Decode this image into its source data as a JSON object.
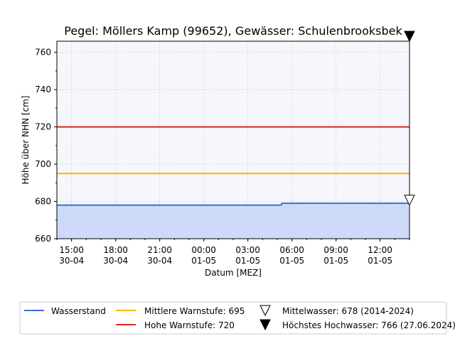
{
  "chart_data": {
    "type": "line",
    "title": "Pegel:  Möllers Kamp (99652), Gewässer:  Schulenbrooksbek",
    "xlabel": "Datum [MEZ]",
    "ylabel": "Höhe über NHN [cm]",
    "xlim": [
      "2024-04-30T14:00",
      "2024-05-01T14:00"
    ],
    "ylim": [
      660,
      766
    ],
    "yticks": [
      660,
      680,
      700,
      720,
      740,
      760
    ],
    "xticks": [
      {
        "t": "2024-04-30T15:00",
        "line1": "15:00",
        "line2": "30-04"
      },
      {
        "t": "2024-04-30T18:00",
        "line1": "18:00",
        "line2": "30-04"
      },
      {
        "t": "2024-04-30T21:00",
        "line1": "21:00",
        "line2": "30-04"
      },
      {
        "t": "2024-05-01T00:00",
        "line1": "00:00",
        "line2": "01-05"
      },
      {
        "t": "2024-05-01T03:00",
        "line1": "03:00",
        "line2": "01-05"
      },
      {
        "t": "2024-05-01T06:00",
        "line1": "06:00",
        "line2": "01-05"
      },
      {
        "t": "2024-05-01T09:00",
        "line1": "09:00",
        "line2": "01-05"
      },
      {
        "t": "2024-05-01T12:00",
        "line1": "12:00",
        "line2": "01-05"
      }
    ],
    "grid": true,
    "series": [
      {
        "name": "Wasserstand",
        "color": "#3a6fd8",
        "fill": "#ccdaf8",
        "x": [
          "2024-04-30T14:00",
          "2024-05-01T05:15",
          "2024-05-01T05:20",
          "2024-05-01T14:00"
        ],
        "values": [
          678,
          678,
          679,
          679
        ]
      }
    ],
    "thresholds": [
      {
        "name": "Mittlere Warnstufe: 695",
        "value": 695,
        "color": "#f5b800"
      },
      {
        "name": "Hohe Warnstufe: 720",
        "value": 720,
        "color": "#d62a20"
      }
    ],
    "markers": [
      {
        "name": "Mittelwasser: 678 (2014-2024)",
        "value": 678,
        "style": "open-triangle-down"
      },
      {
        "name": "Höchstes Hochwasser: 766 (27.06.2024)",
        "value": 766,
        "style": "filled-triangle-down"
      }
    ],
    "legend_position": "bottom",
    "plot_background": "#f6f7fd"
  }
}
